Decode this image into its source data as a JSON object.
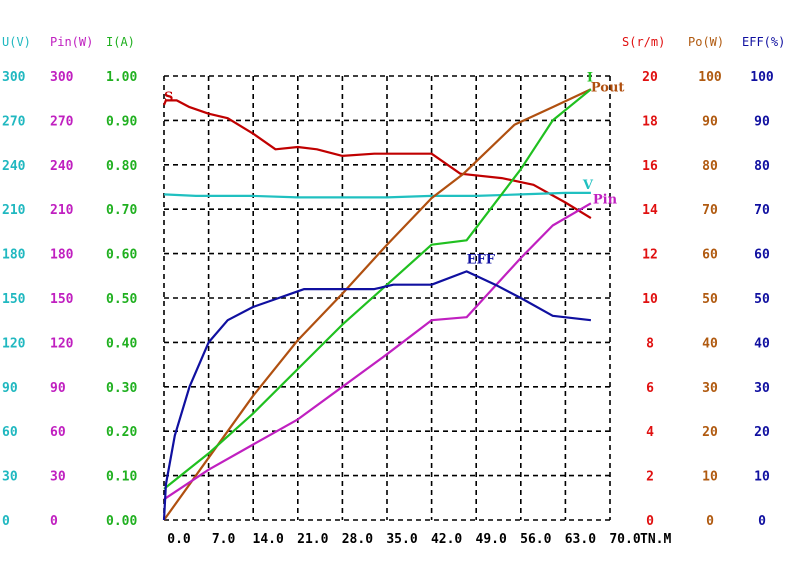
{
  "chart_data": {
    "type": "line",
    "title": "",
    "xlabel": "TN.M",
    "xlim": [
      0,
      70
    ],
    "x_ticks": [
      "0.0",
      "7.0",
      "14.0",
      "21.0",
      "28.0",
      "35.0",
      "42.0",
      "49.0",
      "56.0",
      "63.0",
      "70.0"
    ],
    "grid": true,
    "grid_style": "dashed",
    "axes": [
      {
        "id": "U",
        "title": "U(V)",
        "side": "left",
        "color": "#20b8c0",
        "range": [
          0,
          300
        ],
        "ticks": [
          "0",
          "30",
          "60",
          "90",
          "120",
          "150",
          "180",
          "210",
          "240",
          "270",
          "300"
        ]
      },
      {
        "id": "Pin",
        "title": "Pin(W)",
        "side": "left",
        "color": "#c020c0",
        "range": [
          0,
          300
        ],
        "ticks": [
          "0",
          "30",
          "60",
          "90",
          "120",
          "150",
          "180",
          "210",
          "240",
          "270",
          "300"
        ]
      },
      {
        "id": "I",
        "title": "I(A)",
        "side": "left",
        "color": "#20b020",
        "range": [
          0,
          1
        ],
        "ticks": [
          "0.00",
          "0.10",
          "0.20",
          "0.30",
          "0.40",
          "0.50",
          "0.60",
          "0.70",
          "0.80",
          "0.90",
          "1.00"
        ]
      },
      {
        "id": "S",
        "title": "S(r/m)",
        "side": "right",
        "color": "#e01010",
        "range": [
          0,
          20
        ],
        "ticks": [
          "0",
          "2",
          "4",
          "6",
          "8",
          "10",
          "12",
          "14",
          "16",
          "18",
          "20"
        ]
      },
      {
        "id": "Po",
        "title": "Po(W)",
        "side": "right",
        "color": "#b05a10",
        "range": [
          0,
          100
        ],
        "ticks": [
          "0",
          "10",
          "20",
          "30",
          "40",
          "50",
          "60",
          "70",
          "80",
          "90",
          "100"
        ]
      },
      {
        "id": "EFF",
        "title": "EFF(%)",
        "side": "right",
        "color": "#1010a0",
        "range": [
          0,
          100
        ],
        "ticks": [
          "0",
          "10",
          "20",
          "30",
          "40",
          "50",
          "60",
          "70",
          "80",
          "90",
          "100"
        ]
      }
    ],
    "series": [
      {
        "name": "S",
        "label": "S",
        "axis": "S",
        "color": "#c00000",
        "x": [
          0,
          0.3,
          2,
          4,
          7,
          10,
          14,
          17.5,
          21,
          24,
          28,
          33,
          38,
          42,
          46.5,
          53,
          58,
          63,
          67
        ],
        "values": [
          18.7,
          18.9,
          18.9,
          18.6,
          18.3,
          18.1,
          17.4,
          16.7,
          16.8,
          16.7,
          16.4,
          16.5,
          16.5,
          16.5,
          15.6,
          15.4,
          15.1,
          14.3,
          13.6
        ]
      },
      {
        "name": "V",
        "label": "V",
        "axis": "U",
        "color": "#20c0c0",
        "x": [
          0,
          5,
          14,
          21,
          35,
          42,
          49,
          56,
          63,
          67
        ],
        "values": [
          220,
          219,
          219,
          218,
          218,
          219,
          219,
          220,
          221,
          221
        ]
      },
      {
        "name": "Pout",
        "label": "Pout",
        "axis": "Po",
        "color": "#b05010",
        "x": [
          0,
          7,
          14,
          21,
          28,
          35,
          42,
          47,
          55,
          61,
          67
        ],
        "values": [
          0,
          14,
          28,
          40.5,
          51,
          62,
          72.5,
          78,
          89,
          93,
          97
        ]
      },
      {
        "name": "I",
        "label": "I",
        "axis": "I",
        "color": "#20c020",
        "x": [
          0,
          7,
          14,
          21,
          28,
          35,
          42,
          47.5,
          56,
          61,
          67
        ],
        "values": [
          0.07,
          0.15,
          0.24,
          0.34,
          0.44,
          0.53,
          0.62,
          0.63,
          0.79,
          0.9,
          0.97
        ]
      },
      {
        "name": "Pin",
        "label": "Pin",
        "axis": "Pin",
        "color": "#c020c0",
        "x": [
          0,
          7,
          14,
          21,
          28,
          35,
          42,
          47.5,
          56,
          61,
          67
        ],
        "values": [
          14,
          34,
          51,
          68,
          90,
          112,
          135,
          137,
          177,
          199,
          214
        ]
      },
      {
        "name": "EFF",
        "label": "EFF",
        "axis": "EFF",
        "color": "#1010a0",
        "x": [
          0,
          0.3,
          1.7,
          4,
          7,
          10,
          14,
          18,
          20,
          22,
          33,
          36,
          42,
          47.5,
          52,
          56,
          61,
          67
        ],
        "values": [
          0,
          8,
          19,
          30,
          40,
          45,
          48,
          50,
          51,
          52,
          52,
          53,
          53,
          56,
          53,
          50,
          46,
          45
        ]
      }
    ]
  }
}
